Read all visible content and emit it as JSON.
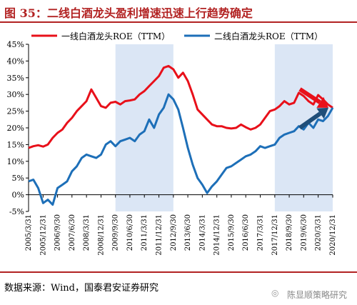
{
  "header": {
    "title": "图 35：二线白酒龙头盈利增速迅速上行趋势确定"
  },
  "footer": {
    "source": "数据来源：Wind，国泰君安证券研究",
    "watermark": "陈显顺策略研究"
  },
  "chart_data": {
    "type": "line",
    "series": [
      {
        "name": "一线白酒龙头ROE（TTM）",
        "color": "#e8101a",
        "points": [
          [
            "2005/3/31",
            14.0
          ],
          [
            "2005/6/30",
            14.5
          ],
          [
            "2005/9/30",
            14.8
          ],
          [
            "2005/12/31",
            14.4
          ],
          [
            "2006/3/31",
            15.0
          ],
          [
            "2006/6/30",
            17.0
          ],
          [
            "2006/9/30",
            18.5
          ],
          [
            "2006/12/31",
            19.5
          ],
          [
            "2007/3/31",
            21.5
          ],
          [
            "2007/6/30",
            23.0
          ],
          [
            "2007/9/30",
            25.0
          ],
          [
            "2007/12/31",
            26.5
          ],
          [
            "2008/3/31",
            28.0
          ],
          [
            "2008/6/30",
            31.5
          ],
          [
            "2008/9/30",
            29.0
          ],
          [
            "2008/12/31",
            26.5
          ],
          [
            "2009/3/31",
            26.0
          ],
          [
            "2009/6/30",
            27.5
          ],
          [
            "2009/9/30",
            27.8
          ],
          [
            "2009/12/31",
            27.0
          ],
          [
            "2010/3/31",
            28.0
          ],
          [
            "2010/6/30",
            28.2
          ],
          [
            "2010/9/30",
            28.5
          ],
          [
            "2010/12/31",
            30.0
          ],
          [
            "2011/3/31",
            31.0
          ],
          [
            "2011/6/30",
            32.5
          ],
          [
            "2011/9/30",
            34.0
          ],
          [
            "2011/12/31",
            35.5
          ],
          [
            "2012/3/31",
            38.0
          ],
          [
            "2012/6/30",
            38.5
          ],
          [
            "2012/9/30",
            37.5
          ],
          [
            "2012/12/31",
            35.0
          ],
          [
            "2013/3/31",
            36.5
          ],
          [
            "2013/6/30",
            34.0
          ],
          [
            "2013/9/30",
            30.0
          ],
          [
            "2013/12/31",
            25.5
          ],
          [
            "2014/3/31",
            24.0
          ],
          [
            "2014/6/30",
            22.5
          ],
          [
            "2014/9/30",
            21.0
          ],
          [
            "2014/12/31",
            20.5
          ],
          [
            "2015/3/31",
            20.5
          ],
          [
            "2015/6/30",
            20.0
          ],
          [
            "2015/9/30",
            19.8
          ],
          [
            "2015/12/31",
            20.0
          ],
          [
            "2016/3/31",
            21.0
          ],
          [
            "2016/6/30",
            20.2
          ],
          [
            "2016/9/30",
            19.5
          ],
          [
            "2016/12/31",
            20.0
          ],
          [
            "2017/3/31",
            21.0
          ],
          [
            "2017/6/30",
            23.0
          ],
          [
            "2017/9/30",
            25.0
          ],
          [
            "2017/12/31",
            25.5
          ],
          [
            "2018/3/31",
            26.5
          ],
          [
            "2018/6/30",
            28.0
          ],
          [
            "2018/9/30",
            27.0
          ],
          [
            "2018/12/31",
            27.5
          ],
          [
            "2019/3/31",
            30.5
          ],
          [
            "2019/6/30",
            29.5
          ],
          [
            "2019/9/30",
            28.0
          ],
          [
            "2019/12/31",
            27.0
          ],
          [
            "2020/3/31",
            29.8
          ],
          [
            "2020/6/30",
            28.5
          ],
          [
            "2020/9/30",
            27.0
          ],
          [
            "2020/12/31",
            26.0
          ]
        ]
      },
      {
        "name": "二线白酒龙头ROE（TTM）",
        "color": "#1d6fb8",
        "points": [
          [
            "2005/3/31",
            4.0
          ],
          [
            "2005/6/30",
            4.5
          ],
          [
            "2005/9/30",
            2.0
          ],
          [
            "2005/12/31",
            -2.5
          ],
          [
            "2006/3/31",
            -1.5
          ],
          [
            "2006/6/30",
            -3.0
          ],
          [
            "2006/9/30",
            2.0
          ],
          [
            "2006/12/31",
            3.0
          ],
          [
            "2007/3/31",
            4.0
          ],
          [
            "2007/6/30",
            7.0
          ],
          [
            "2007/9/30",
            8.5
          ],
          [
            "2007/12/31",
            11.0
          ],
          [
            "2008/3/31",
            12.0
          ],
          [
            "2008/6/30",
            11.5
          ],
          [
            "2008/9/30",
            11.0
          ],
          [
            "2008/12/31",
            12.0
          ],
          [
            "2009/3/31",
            15.0
          ],
          [
            "2009/6/30",
            16.0
          ],
          [
            "2009/9/30",
            14.5
          ],
          [
            "2009/12/31",
            16.0
          ],
          [
            "2010/3/31",
            16.5
          ],
          [
            "2010/6/30",
            17.0
          ],
          [
            "2010/9/30",
            16.0
          ],
          [
            "2010/12/31",
            18.0
          ],
          [
            "2011/3/31",
            19.0
          ],
          [
            "2011/6/30",
            22.5
          ],
          [
            "2011/9/30",
            20.0
          ],
          [
            "2011/12/31",
            24.0
          ],
          [
            "2012/3/31",
            26.0
          ],
          [
            "2012/6/30",
            30.0
          ],
          [
            "2012/9/30",
            28.5
          ],
          [
            "2012/12/31",
            25.5
          ],
          [
            "2013/3/31",
            20.0
          ],
          [
            "2013/6/30",
            14.0
          ],
          [
            "2013/9/30",
            9.0
          ],
          [
            "2013/12/31",
            5.0
          ],
          [
            "2014/3/31",
            3.0
          ],
          [
            "2014/6/30",
            0.5
          ],
          [
            "2014/9/30",
            2.5
          ],
          [
            "2014/12/31",
            4.0
          ],
          [
            "2015/3/31",
            6.0
          ],
          [
            "2015/6/30",
            8.0
          ],
          [
            "2015/9/30",
            8.5
          ],
          [
            "2015/12/31",
            9.5
          ],
          [
            "2016/3/31",
            10.5
          ],
          [
            "2016/6/30",
            11.5
          ],
          [
            "2016/9/30",
            12.0
          ],
          [
            "2016/12/31",
            13.0
          ],
          [
            "2017/3/31",
            14.5
          ],
          [
            "2017/6/30",
            14.0
          ],
          [
            "2017/9/30",
            14.5
          ],
          [
            "2017/12/31",
            15.0
          ],
          [
            "2018/3/31",
            17.0
          ],
          [
            "2018/6/30",
            18.0
          ],
          [
            "2018/9/30",
            18.5
          ],
          [
            "2018/12/31",
            19.0
          ],
          [
            "2019/3/31",
            20.5
          ],
          [
            "2019/6/30",
            19.5
          ],
          [
            "2019/9/30",
            21.5
          ],
          [
            "2019/12/31",
            20.0
          ],
          [
            "2020/3/31",
            22.5
          ],
          [
            "2020/6/30",
            22.0
          ],
          [
            "2020/9/30",
            23.5
          ],
          [
            "2020/12/31",
            26.0
          ]
        ]
      }
    ],
    "x_tick_labels": [
      "2005/3/31",
      "2005/12/31",
      "2006/9/30",
      "2007/6/30",
      "2008/3/31",
      "2008/12/31",
      "2009/9/30",
      "2010/6/30",
      "2011/3/31",
      "2011/12/31",
      "2012/9/30",
      "2013/6/30",
      "2014/3/31",
      "2014/12/31",
      "2015/9/30",
      "2016/6/30",
      "2017/3/31",
      "2017/12/31",
      "2018/9/30",
      "2019/6/30",
      "2020/3/31",
      "2020/12/31"
    ],
    "y_ticks": [
      -5,
      0,
      5,
      10,
      15,
      20,
      25,
      30,
      35,
      40,
      45
    ],
    "y_tick_labels": [
      "-5%",
      "0%",
      "5%",
      "10%",
      "15%",
      "20%",
      "25%",
      "30%",
      "35%",
      "40%",
      "45%"
    ],
    "ylim": [
      -5,
      45
    ],
    "shaded_periods": [
      {
        "from": "2009/9/30",
        "to": "2012/9/30",
        "color": "#dbe6f5"
      },
      {
        "from": "2017/12/31",
        "to": "2020/12/31",
        "color": "#dbe6f5"
      }
    ],
    "arrows": [
      {
        "series": "一线白酒龙头ROE（TTM）",
        "direction": "down",
        "color": "#e8101a"
      },
      {
        "series": "二线白酒龙头ROE（TTM）",
        "direction": "up",
        "color": "#1f4e79"
      }
    ],
    "legend_position": "top",
    "grid": false
  }
}
